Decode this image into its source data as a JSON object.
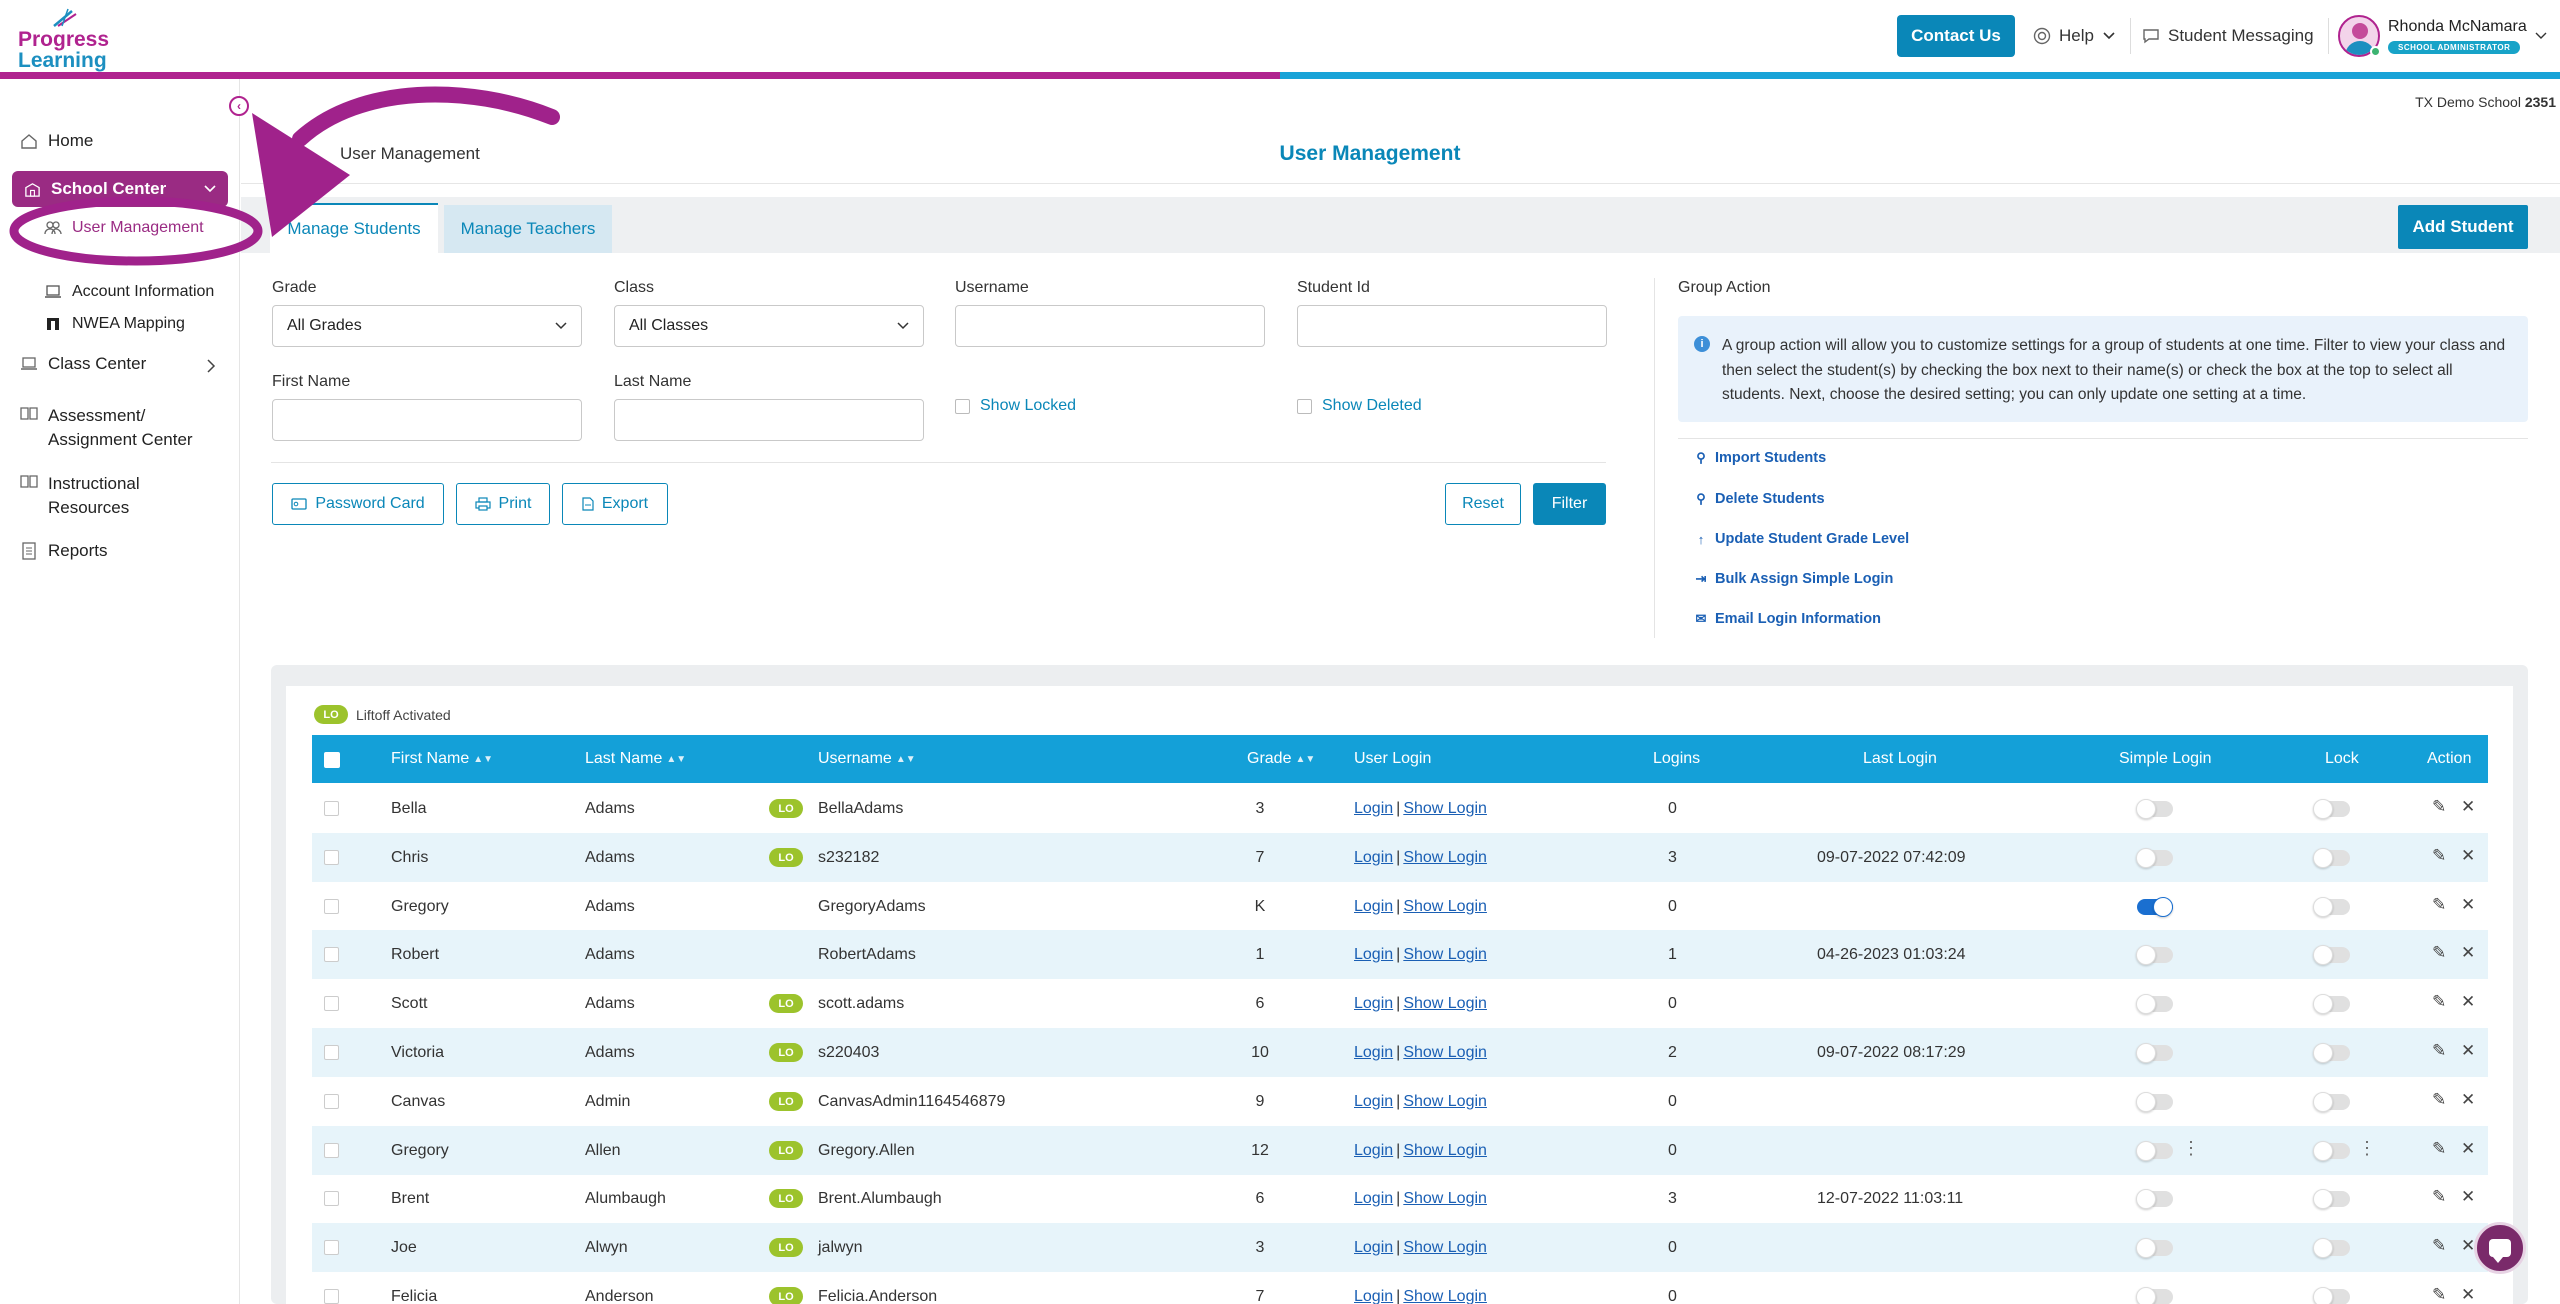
{
  "brand": {
    "line1": "Progress",
    "line2": "Learning",
    "magenta": "#b0238f",
    "blue": "#1c8fc0"
  },
  "header": {
    "contact_label": "Contact Us",
    "help_label": "Help",
    "messaging_label": "Student Messaging",
    "user_name": "Rhonda McNamara",
    "user_role": "SCHOOL ADMINISTRATOR"
  },
  "sidebar": {
    "home": "Home",
    "school_center": "School Center",
    "sub_items": [
      "User Management",
      "Account Information",
      "NWEA Mapping"
    ],
    "class_center": "Class Center",
    "assessment_line1": "Assessment/",
    "assessment_line2": "Assignment Center",
    "instructional_line1": "Instructional",
    "instructional_line2": "Resources",
    "reports": "Reports"
  },
  "main": {
    "school_name": "TX Demo School",
    "school_id": "2351",
    "breadcrumb": "User Management",
    "title": "User Management",
    "tabs": [
      "Manage Students",
      "Manage Teachers"
    ],
    "add_student": "Add Student"
  },
  "filters": {
    "grade_label": "Grade",
    "grade_value": "All Grades",
    "class_label": "Class",
    "class_value": "All Classes",
    "username_label": "Username",
    "student_id_label": "Student Id",
    "first_name_label": "First Name",
    "last_name_label": "Last Name",
    "show_locked": "Show Locked",
    "show_deleted": "Show Deleted",
    "password_card": "Password Card",
    "print": "Print",
    "export": "Export",
    "reset": "Reset",
    "filter": "Filter"
  },
  "group_action": {
    "title": "Group Action",
    "info": "A group action will allow you to customize settings for a group of students at one time. Filter to view your class and then select the student(s) by checking the box next to their name(s) or check the box at the top to select all students. Next, choose the desired setting; you can only update one setting at a time.",
    "links": [
      "Import Students",
      "Delete Students",
      "Update Student Grade Level",
      "Bulk Assign Simple Login",
      "Email Login Information"
    ]
  },
  "table": {
    "legend_badge": "LO",
    "legend_text": "Liftoff Activated",
    "columns": [
      "First Name",
      "Last Name",
      "Username",
      "Grade",
      "User Login",
      "Logins",
      "Last Login",
      "Simple Login",
      "Lock",
      "Action"
    ],
    "login_label": "Login",
    "show_login_label": "Show Login",
    "rows": [
      {
        "first": "Bella",
        "last": "Adams",
        "lo": true,
        "username": "BellaAdams",
        "grade": "3",
        "logins": "0",
        "last_login": "",
        "simple_login": false,
        "lock": false,
        "kebab": false
      },
      {
        "first": "Chris",
        "last": "Adams",
        "lo": true,
        "username": "s232182",
        "grade": "7",
        "logins": "3",
        "last_login": "09-07-2022 07:42:09",
        "simple_login": false,
        "lock": false,
        "kebab": false
      },
      {
        "first": "Gregory",
        "last": "Adams",
        "lo": false,
        "username": "GregoryAdams",
        "grade": "K",
        "logins": "0",
        "last_login": "",
        "simple_login": true,
        "lock": false,
        "kebab": false
      },
      {
        "first": "Robert",
        "last": "Adams",
        "lo": false,
        "username": "RobertAdams",
        "grade": "1",
        "logins": "1",
        "last_login": "04-26-2023 01:03:24",
        "simple_login": false,
        "lock": false,
        "kebab": false
      },
      {
        "first": "Scott",
        "last": "Adams",
        "lo": true,
        "username": "scott.adams",
        "grade": "6",
        "logins": "0",
        "last_login": "",
        "simple_login": false,
        "lock": false,
        "kebab": false
      },
      {
        "first": "Victoria",
        "last": "Adams",
        "lo": true,
        "username": "s220403",
        "grade": "10",
        "logins": "2",
        "last_login": "09-07-2022 08:17:29",
        "simple_login": false,
        "lock": false,
        "kebab": false
      },
      {
        "first": "Canvas",
        "last": "Admin",
        "lo": true,
        "username": "CanvasAdmin1164546879",
        "grade": "9",
        "logins": "0",
        "last_login": "",
        "simple_login": false,
        "lock": false,
        "kebab": false
      },
      {
        "first": "Gregory",
        "last": "Allen",
        "lo": true,
        "username": "Gregory.Allen",
        "grade": "12",
        "logins": "0",
        "last_login": "",
        "simple_login": false,
        "lock": false,
        "kebab": true
      },
      {
        "first": "Brent",
        "last": "Alumbaugh",
        "lo": true,
        "username": "Brent.Alumbaugh",
        "grade": "6",
        "logins": "3",
        "last_login": "12-07-2022 11:03:11",
        "simple_login": false,
        "lock": false,
        "kebab": false
      },
      {
        "first": "Joe",
        "last": "Alwyn",
        "lo": true,
        "username": "jalwyn",
        "grade": "3",
        "logins": "0",
        "last_login": "",
        "simple_login": false,
        "lock": false,
        "kebab": false
      },
      {
        "first": "Felicia",
        "last": "Anderson",
        "lo": true,
        "username": "Felicia.Anderson",
        "grade": "7",
        "logins": "0",
        "last_login": "",
        "simple_login": false,
        "lock": false,
        "kebab": false
      }
    ]
  },
  "icons": {
    "sort": "sort-icon",
    "edit": "pencil-icon",
    "delete": "close-icon",
    "chat": "chat-icon"
  }
}
